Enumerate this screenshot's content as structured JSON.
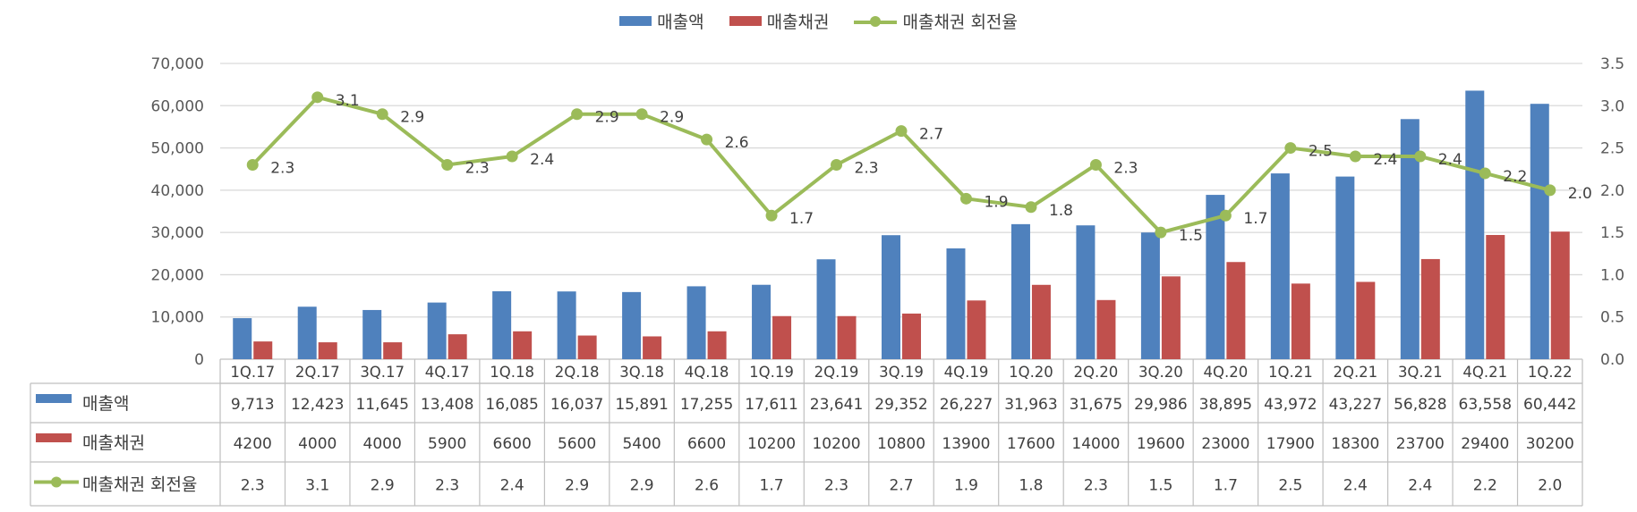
{
  "chart_data": {
    "type": "bar",
    "categories": [
      "1Q.17",
      "2Q.17",
      "3Q.17",
      "4Q.17",
      "1Q.18",
      "2Q.18",
      "3Q.18",
      "4Q.18",
      "1Q.19",
      "2Q.19",
      "3Q.19",
      "4Q.19",
      "1Q.20",
      "2Q.20",
      "3Q.20",
      "4Q.20",
      "1Q.21",
      "2Q.21",
      "3Q.21",
      "4Q.21",
      "1Q.22"
    ],
    "series": [
      {
        "name": "매출액",
        "kind": "bar",
        "color": "#4f81bd",
        "values": [
          9713,
          12423,
          11645,
          13408,
          16085,
          16037,
          15891,
          17255,
          17611,
          23641,
          29352,
          26227,
          31963,
          31675,
          29986,
          38895,
          43972,
          43227,
          56828,
          63558,
          60442
        ],
        "table_labels": [
          "9,713",
          "12,423",
          "11,645",
          "13,408",
          "16,085",
          "16,037",
          "15,891",
          "17,255",
          "17,611",
          "23,641",
          "29,352",
          "26,227",
          "31,963",
          "31,675",
          "29,986",
          "38,895",
          "43,972",
          "43,227",
          "56,828",
          "63,558",
          "60,442"
        ]
      },
      {
        "name": "매출채권",
        "kind": "bar",
        "color": "#c0504d",
        "values": [
          4200,
          4000,
          4000,
          5900,
          6600,
          5600,
          5400,
          6600,
          10200,
          10200,
          10800,
          13900,
          17600,
          14000,
          19600,
          23000,
          17900,
          18300,
          23700,
          29400,
          30200
        ],
        "table_labels": [
          "4200",
          "4000",
          "4000",
          "5900",
          "6600",
          "5600",
          "5400",
          "6600",
          "10200",
          "10200",
          "10800",
          "13900",
          "17600",
          "14000",
          "19600",
          "23000",
          "17900",
          "18300",
          "23700",
          "29400",
          "30200"
        ]
      },
      {
        "name": "매출채권 회전율",
        "kind": "line",
        "axis": "right",
        "color": "#9bbb59",
        "values": [
          2.3,
          3.1,
          2.9,
          2.3,
          2.4,
          2.9,
          2.9,
          2.6,
          1.7,
          2.3,
          2.7,
          1.9,
          1.8,
          2.3,
          1.5,
          1.7,
          2.5,
          2.4,
          2.4,
          2.2,
          2.0
        ],
        "table_labels": [
          "2.3",
          "3.1",
          "2.9",
          "2.3",
          "2.4",
          "2.9",
          "2.9",
          "2.6",
          "1.7",
          "2.3",
          "2.7",
          "1.9",
          "1.8",
          "2.3",
          "1.5",
          "1.7",
          "2.5",
          "2.4",
          "2.4",
          "2.2",
          "2.0"
        ]
      }
    ],
    "y_left": {
      "min": 0,
      "max": 70000,
      "ticks": [
        "0",
        "10,000",
        "20,000",
        "30,000",
        "40,000",
        "50,000",
        "60,000",
        "70,000"
      ]
    },
    "y_right": {
      "min": 0,
      "max": 3.5,
      "ticks": [
        "0.0",
        "0.5",
        "1.0",
        "1.5",
        "2.0",
        "2.5",
        "3.0",
        "3.5"
      ]
    },
    "legend_position": "top-center",
    "grid": true,
    "data_table": true
  }
}
